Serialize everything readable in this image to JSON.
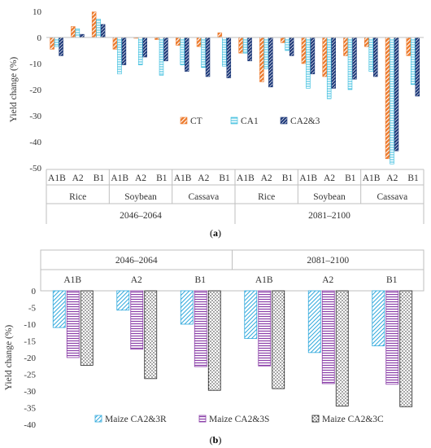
{
  "chart_data": [
    {
      "type": "bar",
      "panel_label": "a",
      "ylabel": "Yield change (%)",
      "ylim": [
        -50,
        10
      ],
      "yticks": [
        -50,
        -40,
        -30,
        -20,
        -10,
        0,
        10
      ],
      "scenarios": [
        "A1B",
        "A2",
        "B1"
      ],
      "crops": [
        "Rice",
        "Soybean",
        "Cassava"
      ],
      "periods": [
        "2046–2064",
        "2081–2100"
      ],
      "categories": [
        "A1B",
        "A2",
        "B1",
        "A1B",
        "A2",
        "B1",
        "A1B",
        "A2",
        "B1",
        "A1B",
        "A2",
        "B1",
        "A1B",
        "A2",
        "B1",
        "A1B",
        "A2",
        "B1"
      ],
      "series": [
        {
          "name": "CT",
          "color": "#ed7d31",
          "pattern": "diag-up",
          "values": [
            -4.5,
            4.2,
            9.8,
            -4.5,
            -0.3,
            -0.8,
            -3.0,
            -3.5,
            1.8,
            -6.0,
            -17.0,
            -2.0,
            -10.0,
            -15.0,
            -7.0,
            -3.5,
            -46.5,
            -7.0
          ]
        },
        {
          "name": "CA1",
          "color": "#33bbdd",
          "pattern": "horizontal",
          "values": [
            -3.5,
            3.3,
            7.0,
            -14.0,
            -10.5,
            -14.5,
            -10.5,
            -11.5,
            -11.0,
            -6.0,
            -12.0,
            -5.0,
            -19.5,
            -23.5,
            -20.0,
            -13.0,
            -48.5,
            -18.0
          ]
        },
        {
          "name": "CA2&3",
          "color": "#1f3a7a",
          "pattern": "diag-up-dense",
          "values": [
            -7.0,
            1.2,
            5.0,
            -10.5,
            -7.5,
            -9.0,
            -13.0,
            -15.0,
            -15.5,
            -9.0,
            -19.0,
            -7.0,
            -14.0,
            -19.5,
            -16.0,
            -15.0,
            -43.5,
            -22.5
          ]
        }
      ],
      "legend_position": "inside-center",
      "grid": false
    },
    {
      "type": "bar",
      "panel_label": "b",
      "ylabel": "Yield change (%)",
      "ylim": [
        -40,
        0
      ],
      "yticks": [
        -40,
        -35,
        -30,
        -25,
        -20,
        -15,
        -10,
        -5,
        0
      ],
      "periods": [
        "2046–2064",
        "2081–2100"
      ],
      "categories": [
        "A1B",
        "A2",
        "B1",
        "A1B",
        "A2",
        "B1"
      ],
      "series": [
        {
          "name": "Maize CA2&3R",
          "color": "#33aadd",
          "pattern": "diag-up",
          "values": [
            -11.0,
            -5.8,
            -10.0,
            -14.3,
            -18.5,
            -16.5
          ]
        },
        {
          "name": "Maize CA2&3S",
          "color": "#8a3fa8",
          "pattern": "horizontal",
          "values": [
            -20.0,
            -17.5,
            -22.7,
            -22.5,
            -27.8,
            -28.0
          ]
        },
        {
          "name": "Maize CA2&3C",
          "color": "#222222",
          "pattern": "dots",
          "values": [
            -22.3,
            -26.3,
            -29.8,
            -29.3,
            -34.5,
            -34.7
          ]
        }
      ],
      "legend_position": "bottom",
      "grid": false
    }
  ]
}
